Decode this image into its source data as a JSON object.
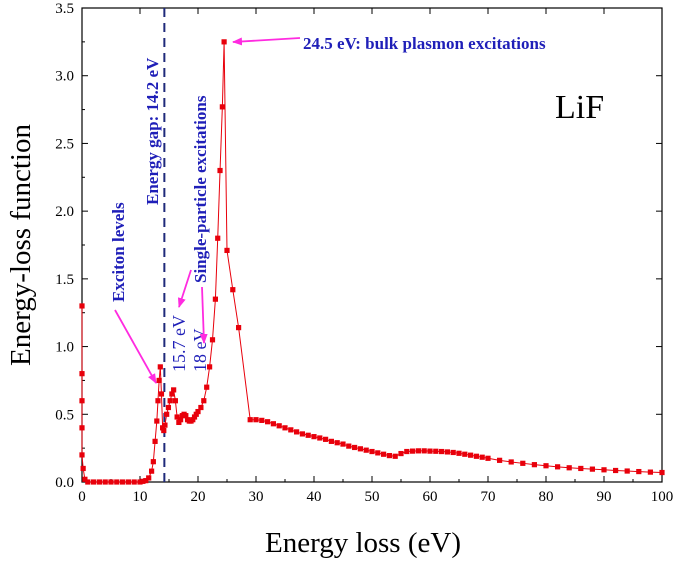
{
  "chart_data": {
    "type": "scatter",
    "title": "",
    "material_label": "LiF",
    "xlabel": "Energy loss (eV)",
    "ylabel": "Energy-loss function",
    "xlim": [
      0,
      100
    ],
    "ylim": [
      0,
      3.5
    ],
    "xticks": [
      "0",
      "10",
      "20",
      "30",
      "40",
      "50",
      "60",
      "70",
      "80",
      "90",
      "100"
    ],
    "yticks": [
      "0.0",
      "0.5",
      "1.0",
      "1.5",
      "2.0",
      "2.5",
      "3.0",
      "3.5"
    ],
    "series": [
      {
        "name": "LiF energy-loss function",
        "color": "#e8000b",
        "points": [
          [
            0,
            1.3
          ],
          [
            0,
            0.8
          ],
          [
            0,
            0.6
          ],
          [
            0,
            0.4
          ],
          [
            0,
            0.2
          ],
          [
            0.2,
            0.1
          ],
          [
            0.5,
            0.02
          ],
          [
            1,
            0.0
          ],
          [
            2,
            0.0
          ],
          [
            3,
            0.0
          ],
          [
            4,
            0.0
          ],
          [
            5,
            0.0
          ],
          [
            6,
            0.0
          ],
          [
            7,
            0.0
          ],
          [
            8,
            0.0
          ],
          [
            9,
            0.0
          ],
          [
            10,
            0.0
          ],
          [
            10.5,
            0.005
          ],
          [
            11,
            0.01
          ],
          [
            11.5,
            0.03
          ],
          [
            12,
            0.08
          ],
          [
            12.3,
            0.15
          ],
          [
            12.6,
            0.3
          ],
          [
            12.9,
            0.45
          ],
          [
            13.1,
            0.6
          ],
          [
            13.3,
            0.75
          ],
          [
            13.5,
            0.85
          ],
          [
            13.7,
            0.65
          ],
          [
            13.9,
            0.4
          ],
          [
            14.1,
            0.38
          ],
          [
            14.3,
            0.42
          ],
          [
            14.6,
            0.5
          ],
          [
            14.9,
            0.55
          ],
          [
            15.2,
            0.6
          ],
          [
            15.5,
            0.65
          ],
          [
            15.8,
            0.68
          ],
          [
            16.1,
            0.6
          ],
          [
            16.4,
            0.48
          ],
          [
            16.7,
            0.44
          ],
          [
            17,
            0.46
          ],
          [
            17.3,
            0.49
          ],
          [
            17.6,
            0.5
          ],
          [
            17.9,
            0.49
          ],
          [
            18.2,
            0.46
          ],
          [
            18.5,
            0.45
          ],
          [
            18.8,
            0.45
          ],
          [
            19.1,
            0.46
          ],
          [
            19.4,
            0.48
          ],
          [
            19.7,
            0.5
          ],
          [
            20,
            0.52
          ],
          [
            20.5,
            0.55
          ],
          [
            21,
            0.6
          ],
          [
            21.5,
            0.7
          ],
          [
            22,
            0.85
          ],
          [
            22.5,
            1.05
          ],
          [
            23,
            1.35
          ],
          [
            23.4,
            1.8
          ],
          [
            23.8,
            2.3
          ],
          [
            24.2,
            2.77
          ],
          [
            24.5,
            3.25
          ],
          [
            25,
            1.71
          ],
          [
            26,
            1.42
          ],
          [
            27,
            1.14
          ],
          [
            29,
            0.46
          ],
          [
            30,
            0.46
          ],
          [
            31,
            0.455
          ],
          [
            32,
            0.445
          ],
          [
            33,
            0.43
          ],
          [
            34,
            0.415
          ],
          [
            35,
            0.4
          ],
          [
            36,
            0.385
          ],
          [
            37,
            0.37
          ],
          [
            38,
            0.355
          ],
          [
            39,
            0.345
          ],
          [
            40,
            0.335
          ],
          [
            41,
            0.325
          ],
          [
            42,
            0.315
          ],
          [
            43,
            0.3
          ],
          [
            44,
            0.29
          ],
          [
            45,
            0.28
          ],
          [
            46,
            0.265
          ],
          [
            47,
            0.255
          ],
          [
            48,
            0.245
          ],
          [
            49,
            0.235
          ],
          [
            50,
            0.225
          ],
          [
            51,
            0.215
          ],
          [
            52,
            0.205
          ],
          [
            53,
            0.195
          ],
          [
            54,
            0.19
          ],
          [
            55,
            0.21
          ],
          [
            56,
            0.225
          ],
          [
            57,
            0.228
          ],
          [
            58,
            0.23
          ],
          [
            59,
            0.23
          ],
          [
            60,
            0.228
          ],
          [
            61,
            0.227
          ],
          [
            62,
            0.225
          ],
          [
            63,
            0.222
          ],
          [
            64,
            0.218
          ],
          [
            65,
            0.212
          ],
          [
            66,
            0.205
          ],
          [
            67,
            0.198
          ],
          [
            68,
            0.19
          ],
          [
            69,
            0.183
          ],
          [
            70,
            0.175
          ],
          [
            72,
            0.16
          ],
          [
            74,
            0.148
          ],
          [
            76,
            0.138
          ],
          [
            78,
            0.128
          ],
          [
            80,
            0.12
          ],
          [
            82,
            0.112
          ],
          [
            84,
            0.105
          ],
          [
            86,
            0.1
          ],
          [
            88,
            0.095
          ],
          [
            90,
            0.09
          ],
          [
            92,
            0.085
          ],
          [
            94,
            0.081
          ],
          [
            96,
            0.077
          ],
          [
            98,
            0.073
          ],
          [
            100,
            0.07
          ]
        ]
      }
    ],
    "gap_line": {
      "x": 14.2,
      "color": "#1f2a7a"
    },
    "annotations": {
      "plasmon": "24.5 eV: bulk plasmon excitations",
      "gap": "Energy gap: 14.2 eV",
      "single_particle": "Single-particle excitations",
      "exciton": "Exciton levels",
      "e157": "15.7 eV",
      "e18": "18 eV"
    },
    "arrow_color": "#ff2be0"
  }
}
